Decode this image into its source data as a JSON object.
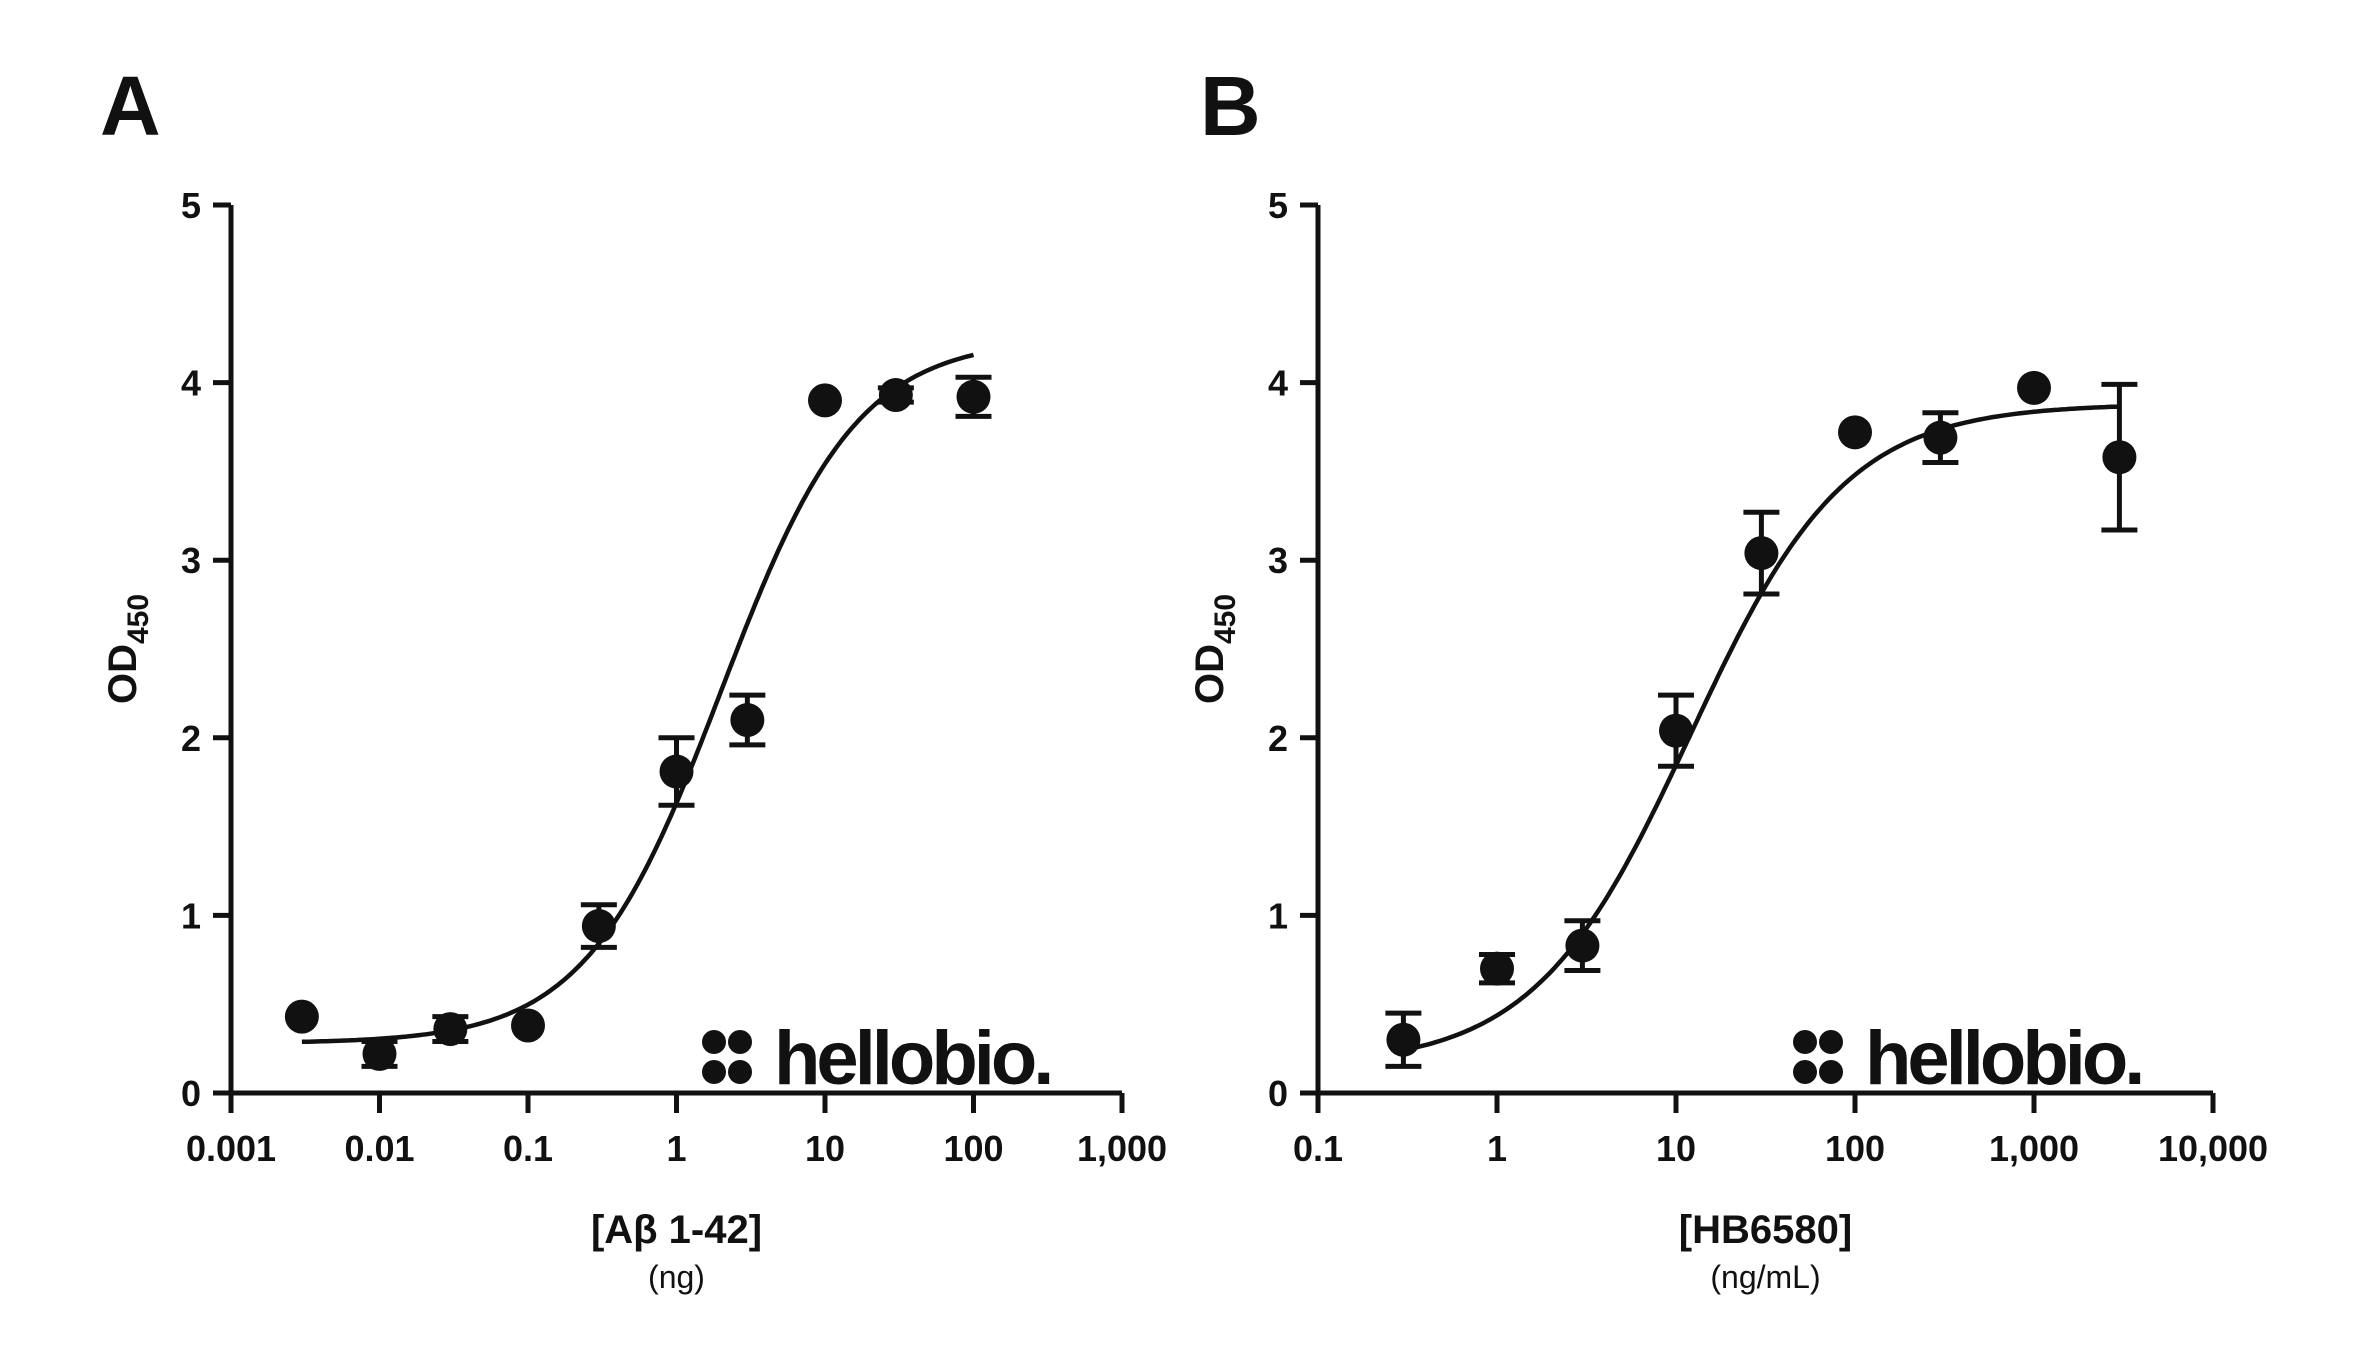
{
  "chart_data": [
    {
      "type": "scatter",
      "panel_label": "A",
      "xlabel": "[Aβ 1-42]",
      "xunit": "(ng)",
      "ylabel": "OD",
      "ylabel_sub": "450",
      "xscale": "log",
      "xlim": [
        0.001,
        1000
      ],
      "ylim": [
        0,
        5
      ],
      "xticks": [
        0.001,
        0.01,
        0.1,
        1,
        10,
        100,
        1000
      ],
      "xtick_labels": [
        "0.001",
        "0.01",
        "0.1",
        "1",
        "10",
        "100",
        "1,000"
      ],
      "yticks": [
        0,
        1,
        2,
        3,
        4,
        5
      ],
      "ytick_labels": [
        "0",
        "1",
        "2",
        "3",
        "4",
        "5"
      ],
      "grid": false,
      "points": [
        {
          "x": 0.003,
          "y": 0.43,
          "err": 0
        },
        {
          "x": 0.01,
          "y": 0.22,
          "err": 0.07
        },
        {
          "x": 0.03,
          "y": 0.36,
          "err": 0.07
        },
        {
          "x": 0.1,
          "y": 0.38,
          "err": 0
        },
        {
          "x": 0.3,
          "y": 0.94,
          "err": 0.12
        },
        {
          "x": 1,
          "y": 1.81,
          "err": 0.19
        },
        {
          "x": 3,
          "y": 2.1,
          "err": 0.14
        },
        {
          "x": 10,
          "y": 3.9,
          "err": 0
        },
        {
          "x": 30,
          "y": 3.93,
          "err": 0.04
        },
        {
          "x": 100,
          "y": 3.92,
          "err": 0.11
        }
      ],
      "fit": {
        "model": "4PL",
        "bottom": 0.28,
        "top": 4.25,
        "ec50": 2.0,
        "hill": 0.95,
        "x_range": [
          0.003,
          100
        ]
      },
      "logo": "hellobio."
    },
    {
      "type": "scatter",
      "panel_label": "B",
      "xlabel": "[HB6580]",
      "xunit": "(ng/mL)",
      "ylabel": "OD",
      "ylabel_sub": "450",
      "xscale": "log",
      "xlim": [
        0.1,
        10000
      ],
      "ylim": [
        0,
        5
      ],
      "xticks": [
        0.1,
        1,
        10,
        100,
        1000,
        10000
      ],
      "xtick_labels": [
        "0.1",
        "1",
        "10",
        "100",
        "1,000",
        "10,000"
      ],
      "yticks": [
        0,
        1,
        2,
        3,
        4,
        5
      ],
      "ytick_labels": [
        "0",
        "1",
        "2",
        "3",
        "4",
        "5"
      ],
      "grid": false,
      "points": [
        {
          "x": 0.3,
          "y": 0.3,
          "err": 0.15
        },
        {
          "x": 1,
          "y": 0.7,
          "err": 0.08
        },
        {
          "x": 3,
          "y": 0.83,
          "err": 0.14
        },
        {
          "x": 10,
          "y": 2.04,
          "err": 0.2
        },
        {
          "x": 30,
          "y": 3.04,
          "err": 0.23
        },
        {
          "x": 100,
          "y": 3.72,
          "err": 0
        },
        {
          "x": 300,
          "y": 3.69,
          "err": 0.14
        },
        {
          "x": 1000,
          "y": 3.97,
          "err": 0
        },
        {
          "x": 3000,
          "y": 3.58,
          "err": 0.41
        }
      ],
      "fit": {
        "model": "4PL",
        "bottom": 0.15,
        "top": 3.88,
        "ec50": 12,
        "hill": 1.0,
        "x_range": [
          0.3,
          3000
        ]
      },
      "logo": "hellobio."
    }
  ]
}
